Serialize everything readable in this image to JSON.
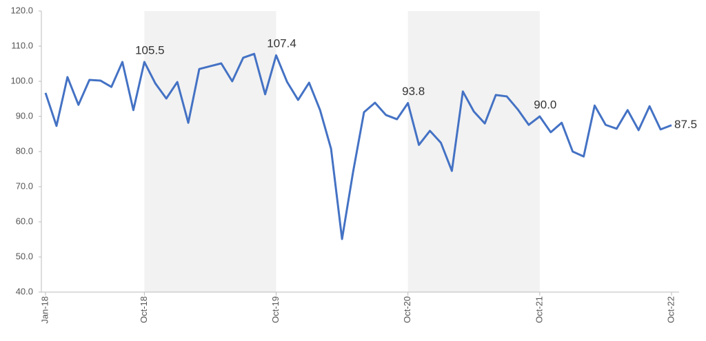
{
  "chart_data": {
    "type": "line",
    "categories": [
      "Jan-18",
      null,
      null,
      null,
      null,
      null,
      null,
      null,
      null,
      "Oct-18",
      null,
      null,
      null,
      null,
      null,
      null,
      null,
      null,
      null,
      null,
      null,
      "Oct-19",
      null,
      null,
      null,
      null,
      null,
      null,
      null,
      null,
      null,
      null,
      null,
      "Oct-20",
      null,
      null,
      null,
      null,
      null,
      null,
      null,
      null,
      null,
      null,
      null,
      "Oct-21",
      null,
      null,
      null,
      null,
      null,
      null,
      null,
      null,
      null,
      null,
      null,
      "Oct-22"
    ],
    "series": [
      {
        "color": "#4472c4",
        "values": [
          96.7,
          87.3,
          101.2,
          93.3,
          100.4,
          100.2,
          98.4,
          105.5,
          91.8,
          105.5,
          99.4,
          95.1,
          99.8,
          88.2,
          103.5,
          104.3,
          105.1,
          100.0,
          106.7,
          107.8,
          96.3,
          107.4,
          99.8,
          94.7,
          99.6,
          91.8,
          80.8,
          55.1,
          74.1,
          91.2,
          93.9,
          90.4,
          89.2,
          93.8,
          81.9,
          85.9,
          82.5,
          74.5,
          97.1,
          91.4,
          88.0,
          96.1,
          95.7,
          92.0,
          87.6,
          90.0,
          85.5,
          88.2,
          80.0,
          78.6,
          93.1,
          87.6,
          86.5,
          91.8,
          86.1,
          92.9,
          86.3,
          87.5
        ],
        "value_labels": [
          null,
          null,
          null,
          null,
          null,
          null,
          null,
          null,
          null,
          "105.5",
          null,
          null,
          null,
          null,
          null,
          null,
          null,
          null,
          null,
          null,
          null,
          "107.4",
          null,
          null,
          null,
          null,
          null,
          null,
          null,
          null,
          null,
          null,
          null,
          "93.8",
          null,
          null,
          null,
          null,
          null,
          null,
          null,
          null,
          null,
          null,
          null,
          "90.0",
          null,
          null,
          null,
          null,
          null,
          null,
          null,
          null,
          null,
          null,
          null,
          "87.5"
        ]
      }
    ],
    "shaded_ranges": [
      [
        9,
        21
      ],
      [
        33,
        45
      ]
    ],
    "shade_color": "#f2f2f2",
    "ylim": [
      40,
      120
    ],
    "yticks": [
      {
        "value": 40,
        "label": "40.0"
      },
      {
        "value": 50,
        "label": "50.0"
      },
      {
        "value": 60,
        "label": "60.0"
      },
      {
        "value": 70,
        "label": "70.0"
      },
      {
        "value": 80,
        "label": "80.0"
      },
      {
        "value": 90,
        "label": "90.0"
      },
      {
        "value": 100,
        "label": "100.0"
      },
      {
        "value": 110,
        "label": "110.0"
      },
      {
        "value": 120,
        "label": "120.0"
      }
    ]
  }
}
